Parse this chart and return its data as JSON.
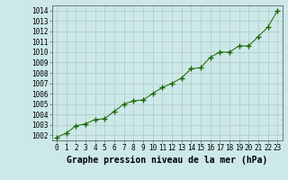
{
  "x": [
    0,
    1,
    2,
    3,
    4,
    5,
    6,
    7,
    8,
    9,
    10,
    11,
    12,
    13,
    14,
    15,
    16,
    17,
    18,
    19,
    20,
    21,
    22,
    23
  ],
  "y": [
    1001.8,
    1002.2,
    1002.9,
    1003.1,
    1003.5,
    1003.6,
    1004.3,
    1005.0,
    1005.3,
    1005.4,
    1006.0,
    1006.6,
    1007.0,
    1007.5,
    1008.4,
    1008.5,
    1009.5,
    1010.0,
    1010.0,
    1010.6,
    1010.6,
    1011.5,
    1012.4,
    1014.0
  ],
  "line_color": "#1a6600",
  "marker_color": "#1a6600",
  "bg_color": "#cce8e8",
  "grid_color": "#b0c8c8",
  "title": "Graphe pression niveau de la mer (hPa)",
  "ylim_min": 1001.5,
  "ylim_max": 1014.5,
  "yticks": [
    1002,
    1003,
    1004,
    1005,
    1006,
    1007,
    1008,
    1009,
    1010,
    1011,
    1012,
    1013,
    1014
  ],
  "xticks": [
    0,
    1,
    2,
    3,
    4,
    5,
    6,
    7,
    8,
    9,
    10,
    11,
    12,
    13,
    14,
    15,
    16,
    17,
    18,
    19,
    20,
    21,
    22,
    23
  ],
  "tick_fontsize": 5.5,
  "title_fontsize": 7,
  "title_fontweight": "bold"
}
